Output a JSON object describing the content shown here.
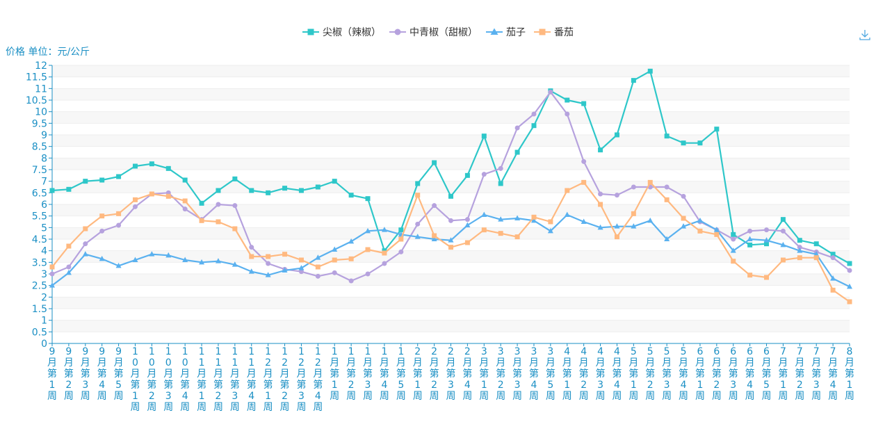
{
  "chart_data": {
    "type": "line",
    "ylabel": "价格 单位：元/公斤",
    "ylim": [
      0,
      12
    ],
    "yticks": [
      "0",
      "0.5",
      "1",
      "1.5",
      "2",
      "2.5",
      "3",
      "3.5",
      "4",
      "4.5",
      "5",
      "5.5",
      "6",
      "6.5",
      "7",
      "7.5",
      "8",
      "8.5",
      "9",
      "9.5",
      "10",
      "10.5",
      "11",
      "11.5",
      "12"
    ],
    "legend_position": "top-center",
    "grid": true,
    "categories": [
      "9月第1周",
      "9月第2周",
      "9月第3周",
      "9月第4周",
      "9月第5周",
      "10月第1周",
      "10月第2周",
      "10月第3周",
      "10月第4周",
      "11月第1周",
      "11月第2周",
      "11月第3周",
      "11月第4周",
      "12月第1周",
      "12月第2周",
      "12月第3周",
      "12月第4周",
      "1月第1周",
      "1月第2周",
      "1月第3周",
      "1月第4周",
      "1月第5周",
      "2月第1周",
      "2月第2周",
      "2月第3周",
      "2月第4周",
      "3月第1周",
      "3月第2周",
      "3月第3周",
      "3月第4周",
      "3月第5周",
      "4月第1周",
      "4月第2周",
      "4月第3周",
      "4月第4周",
      "5月第1周",
      "5月第2周",
      "5月第3周",
      "5月第4周",
      "6月第1周",
      "6月第2周",
      "6月第3周",
      "6月第4周",
      "6月第5周",
      "7月第1周",
      "7月第2周",
      "7月第3周",
      "7月第4周",
      "8月第1周"
    ],
    "series": [
      {
        "name": "尖椒（辣椒）",
        "color": "#2ec7c9",
        "marker": "square",
        "values": [
          6.6,
          6.65,
          7.0,
          7.05,
          7.2,
          7.65,
          7.75,
          7.55,
          7.05,
          6.05,
          6.6,
          7.1,
          6.6,
          6.5,
          6.7,
          6.6,
          6.75,
          7.0,
          6.4,
          6.25,
          4.0,
          4.9,
          6.9,
          7.8,
          6.35,
          7.25,
          8.95,
          6.9,
          8.25,
          9.4,
          10.9,
          10.5,
          10.35,
          8.35,
          9.0,
          11.35,
          11.75,
          8.95,
          8.65,
          8.65,
          9.25,
          4.7,
          4.25,
          4.3,
          5.35,
          4.45,
          4.3,
          3.85,
          3.45
        ]
      },
      {
        "name": "中青椒（甜椒）",
        "color": "#b6a2de",
        "marker": "circle",
        "values": [
          3.0,
          3.3,
          4.3,
          4.85,
          5.1,
          5.9,
          6.45,
          6.5,
          5.8,
          5.35,
          6.0,
          5.95,
          4.15,
          3.45,
          3.2,
          3.1,
          2.9,
          3.05,
          2.7,
          3.0,
          3.45,
          3.95,
          5.15,
          5.95,
          5.3,
          5.35,
          7.3,
          7.55,
          9.3,
          9.9,
          10.85,
          9.9,
          7.85,
          6.45,
          6.4,
          6.75,
          6.75,
          6.75,
          6.35,
          5.25,
          4.9,
          4.5,
          4.85,
          4.9,
          4.85,
          4.15,
          3.95,
          3.7,
          3.15
        ]
      },
      {
        "name": "茄子",
        "color": "#5ab1ef",
        "marker": "triangle",
        "values": [
          2.5,
          3.05,
          3.85,
          3.65,
          3.35,
          3.6,
          3.85,
          3.8,
          3.6,
          3.5,
          3.55,
          3.4,
          3.1,
          2.95,
          3.15,
          3.25,
          3.7,
          4.05,
          4.4,
          4.85,
          4.9,
          4.7,
          4.6,
          4.5,
          4.45,
          5.1,
          5.55,
          5.35,
          5.4,
          5.3,
          4.85,
          5.55,
          5.25,
          5.0,
          5.05,
          5.05,
          5.3,
          4.5,
          5.05,
          5.3,
          4.9,
          4.0,
          4.5,
          4.45,
          4.25,
          4.0,
          3.85,
          2.8,
          2.45
        ]
      },
      {
        "name": "番茄",
        "color": "#ffb980",
        "marker": "square",
        "values": [
          3.3,
          4.2,
          4.95,
          5.5,
          5.6,
          6.2,
          6.45,
          6.35,
          6.15,
          5.3,
          5.25,
          4.95,
          3.75,
          3.75,
          3.85,
          3.6,
          3.3,
          3.6,
          3.65,
          4.05,
          3.9,
          4.5,
          6.4,
          4.65,
          4.15,
          4.35,
          4.9,
          4.75,
          4.6,
          5.45,
          5.25,
          6.6,
          6.95,
          6.0,
          4.6,
          5.6,
          6.95,
          6.2,
          5.4,
          4.85,
          4.7,
          3.55,
          2.95,
          2.85,
          3.6,
          3.7,
          3.7,
          2.3,
          1.8
        ]
      }
    ]
  },
  "icons": {
    "download": "download-icon"
  }
}
